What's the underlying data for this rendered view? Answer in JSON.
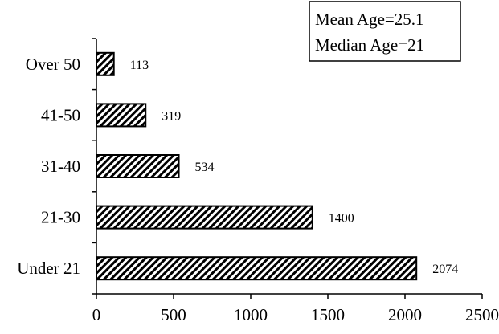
{
  "chart_data": {
    "type": "bar",
    "orientation": "horizontal",
    "categories": [
      "Under 21",
      "21-30",
      "31-40",
      "41-50",
      "Over 50"
    ],
    "values": [
      2074,
      1400,
      534,
      319,
      113
    ],
    "data_labels": [
      "2074",
      "1400",
      "534",
      "319",
      "113"
    ],
    "xlim": [
      0,
      2500
    ],
    "xticks": [
      0,
      500,
      1000,
      1500,
      2000,
      2500
    ],
    "xtick_labels": [
      "0",
      "500",
      "1000",
      "1500",
      "2000",
      "2500"
    ],
    "title": "",
    "xlabel": "",
    "ylabel": "",
    "grid": false,
    "legend": "none",
    "bar_fill": "diagonal-hatch",
    "colors": {
      "bar_stroke": "#000000",
      "hatch": "#000000",
      "background": "#ffffff"
    },
    "annotation": {
      "lines": [
        "Mean Age=25.1",
        "Median Age=21"
      ],
      "placement": "top-right"
    }
  }
}
